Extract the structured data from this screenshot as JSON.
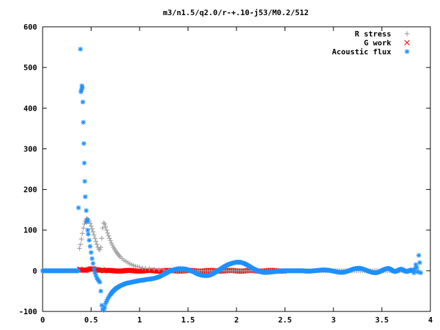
{
  "chart_data": {
    "type": "scatter",
    "title": "m3/n1.5/q2.0/r-+.10-j53/M0.2/512",
    "xlabel": "",
    "ylabel": "",
    "xlim": [
      0,
      4
    ],
    "ylim": [
      -100,
      600
    ],
    "x_ticks": [
      "0",
      "0.5",
      "1",
      "1.5",
      "2",
      "2.5",
      "3",
      "3.5",
      "4"
    ],
    "y_ticks": [
      "-100",
      "0",
      "100",
      "200",
      "300",
      "400",
      "500",
      "600"
    ],
    "grid": false,
    "legend_position": "top-right",
    "series": [
      {
        "name": "R stress",
        "marker": "plus",
        "color": "#a0a0a0",
        "points": [
          [
            0.38,
            55
          ],
          [
            0.39,
            65
          ],
          [
            0.4,
            78
          ],
          [
            0.41,
            92
          ],
          [
            0.42,
            105
          ],
          [
            0.43,
            115
          ],
          [
            0.44,
            122
          ],
          [
            0.45,
            127
          ],
          [
            0.46,
            128
          ],
          [
            0.47,
            126
          ],
          [
            0.48,
            122
          ],
          [
            0.49,
            117
          ],
          [
            0.5,
            110
          ],
          [
            0.51,
            103
          ],
          [
            0.52,
            96
          ],
          [
            0.53,
            88
          ],
          [
            0.54,
            80
          ],
          [
            0.55,
            72
          ],
          [
            0.56,
            65
          ],
          [
            0.57,
            58
          ],
          [
            0.58,
            53
          ],
          [
            0.59,
            52
          ],
          [
            0.6,
            58
          ],
          [
            0.61,
            80
          ],
          [
            0.62,
            105
          ],
          [
            0.63,
            118
          ],
          [
            0.64,
            115
          ],
          [
            0.65,
            108
          ],
          [
            0.66,
            100
          ],
          [
            0.67,
            93
          ],
          [
            0.68,
            86
          ],
          [
            0.69,
            80
          ],
          [
            0.7,
            74
          ],
          [
            0.71,
            68
          ],
          [
            0.72,
            63
          ],
          [
            0.73,
            58
          ],
          [
            0.74,
            54
          ],
          [
            0.75,
            50
          ],
          [
            0.76,
            46
          ],
          [
            0.77,
            43
          ],
          [
            0.78,
            40
          ],
          [
            0.79,
            37
          ],
          [
            0.8,
            34
          ],
          [
            0.82,
            30
          ],
          [
            0.84,
            26
          ],
          [
            0.86,
            23
          ],
          [
            0.88,
            20
          ],
          [
            0.9,
            17
          ],
          [
            0.92,
            15
          ],
          [
            0.94,
            13
          ],
          [
            0.96,
            11
          ],
          [
            0.98,
            10
          ],
          [
            1.0,
            9
          ],
          [
            1.03,
            7
          ],
          [
            1.06,
            6
          ],
          [
            1.1,
            5
          ],
          [
            1.15,
            4
          ],
          [
            1.2,
            3
          ],
          [
            1.25,
            2
          ],
          [
            1.3,
            2
          ]
        ]
      },
      {
        "name": "G work",
        "marker": "cross",
        "color": "#ff0000",
        "x_range": [
          0.38,
          2.5
        ],
        "step": 0.0125,
        "y_values_note": "",
        "points": []
      },
      {
        "name": "Acoustic flux",
        "marker": "star",
        "color": "#1e90ff",
        "points": [
          [
            0.37,
            155
          ],
          [
            0.39,
            545
          ],
          [
            0.395,
            440
          ],
          [
            0.4,
            445
          ],
          [
            0.405,
            455
          ],
          [
            0.41,
            450
          ],
          [
            0.415,
            415
          ],
          [
            0.42,
            365
          ],
          [
            0.425,
            313
          ],
          [
            0.43,
            265
          ],
          [
            0.435,
            220
          ],
          [
            0.44,
            182
          ],
          [
            0.45,
            148
          ],
          [
            0.455,
            120
          ],
          [
            0.46,
            125
          ],
          [
            0.465,
            100
          ],
          [
            0.47,
            90
          ],
          [
            0.48,
            75
          ],
          [
            0.49,
            60
          ],
          [
            0.5,
            45
          ],
          [
            0.51,
            30
          ],
          [
            0.52,
            18
          ],
          [
            0.53,
            5
          ],
          [
            0.54,
            -5
          ],
          [
            0.55,
            -12
          ],
          [
            0.56,
            -18
          ],
          [
            0.57,
            -22
          ],
          [
            0.58,
            -25
          ],
          [
            0.59,
            -28
          ],
          [
            0.6,
            -50
          ],
          [
            0.61,
            -85
          ],
          [
            0.62,
            -95
          ],
          [
            0.63,
            -97
          ],
          [
            0.64,
            -90
          ],
          [
            0.65,
            -80
          ],
          [
            0.66,
            -75
          ],
          [
            0.67,
            -70
          ],
          [
            0.68,
            -65
          ],
          [
            0.69,
            -62
          ],
          [
            0.7,
            -58
          ],
          [
            0.72,
            -52
          ],
          [
            0.74,
            -47
          ],
          [
            0.76,
            -43
          ],
          [
            0.78,
            -40
          ],
          [
            0.8,
            -37
          ],
          [
            0.82,
            -35
          ],
          [
            0.84,
            -33
          ],
          [
            0.86,
            -31
          ],
          [
            0.88,
            -30
          ],
          [
            0.9,
            -29
          ],
          [
            0.92,
            -28
          ],
          [
            0.94,
            -27
          ],
          [
            0.96,
            -26
          ],
          [
            0.98,
            -25
          ],
          [
            1.0,
            -24
          ],
          [
            1.04,
            -23
          ],
          [
            1.08,
            -21
          ],
          [
            1.12,
            -20
          ],
          [
            1.16,
            -18
          ],
          [
            1.2,
            -15
          ],
          [
            1.24,
            -10
          ],
          [
            1.28,
            -5
          ],
          [
            1.32,
            0
          ],
          [
            1.36,
            3
          ],
          [
            1.4,
            5
          ],
          [
            1.44,
            5
          ],
          [
            1.48,
            4
          ],
          [
            1.52,
            1
          ],
          [
            1.56,
            -3
          ],
          [
            1.6,
            -8
          ],
          [
            1.64,
            -11
          ],
          [
            1.68,
            -12
          ],
          [
            1.72,
            -11
          ],
          [
            1.76,
            -7
          ],
          [
            1.8,
            -1
          ],
          [
            1.84,
            5
          ],
          [
            1.88,
            11
          ],
          [
            1.92,
            16
          ],
          [
            1.96,
            19
          ],
          [
            2.0,
            21
          ],
          [
            2.04,
            21
          ],
          [
            2.08,
            18
          ],
          [
            2.12,
            13
          ],
          [
            2.16,
            7
          ],
          [
            2.2,
            2
          ],
          [
            2.24,
            -2
          ],
          [
            2.28,
            -4
          ],
          [
            2.32,
            -4
          ],
          [
            2.36,
            -3
          ],
          [
            2.4,
            -2
          ],
          [
            2.44,
            -1
          ],
          [
            2.48,
            0
          ],
          [
            2.52,
            0
          ],
          [
            2.56,
            0
          ],
          [
            2.6,
            0
          ],
          [
            2.64,
            0
          ],
          [
            2.68,
            0
          ],
          [
            2.72,
            -1
          ],
          [
            2.76,
            -1
          ],
          [
            2.8,
            0
          ],
          [
            2.84,
            1
          ],
          [
            2.88,
            2
          ],
          [
            2.92,
            2
          ],
          [
            2.96,
            1
          ],
          [
            3.0,
            -1
          ],
          [
            3.04,
            -3
          ],
          [
            3.08,
            -4
          ],
          [
            3.12,
            -3
          ],
          [
            3.16,
            0
          ],
          [
            3.2,
            4
          ],
          [
            3.24,
            6
          ],
          [
            3.28,
            6
          ],
          [
            3.32,
            3
          ],
          [
            3.36,
            -1
          ],
          [
            3.4,
            -4
          ],
          [
            3.44,
            -5
          ],
          [
            3.48,
            -2
          ],
          [
            3.52,
            3
          ],
          [
            3.56,
            6
          ],
          [
            3.58,
            5
          ],
          [
            3.6,
            2
          ],
          [
            3.62,
            -1
          ],
          [
            3.64,
            -2
          ],
          [
            3.66,
            0
          ],
          [
            3.68,
            3
          ],
          [
            3.7,
            4
          ],
          [
            3.72,
            2
          ],
          [
            3.74,
            -1
          ],
          [
            3.76,
            -2
          ],
          [
            3.78,
            0
          ],
          [
            3.8,
            2
          ],
          [
            3.82,
            0
          ],
          [
            3.83,
            -5
          ],
          [
            3.84,
            5
          ],
          [
            3.85,
            15
          ],
          [
            3.86,
            8
          ],
          [
            3.87,
            -3
          ],
          [
            3.88,
            38
          ],
          [
            3.89,
            20
          ],
          [
            3.9,
            -5
          ]
        ]
      }
    ]
  }
}
